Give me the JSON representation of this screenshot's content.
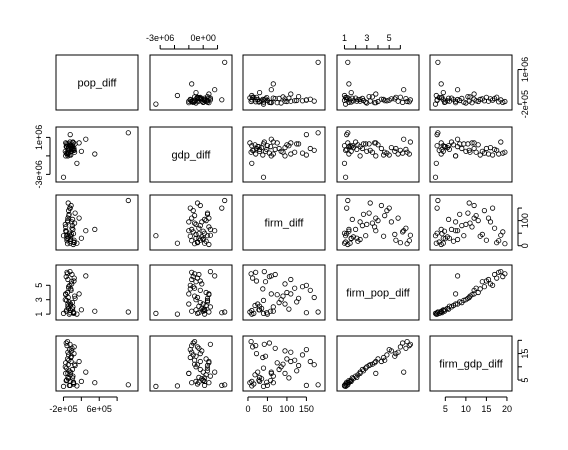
{
  "chart_data": {
    "type": "scatter",
    "variables": [
      "pop_diff",
      "gdp_diff",
      "firm_diff",
      "firm_pop_diff",
      "firm_gdp_diff"
    ],
    "axis_ticks": {
      "pop_diff": [
        "-2e+05",
        "6e+05"
      ],
      "gdp_diff": [
        "-3e+06",
        "0e+00",
        "1e+06",
        "-2e+05",
        "1e+06"
      ],
      "firm_diff": [
        "0",
        "50",
        "100",
        "150",
        "0",
        "100"
      ],
      "firm_pop_diff": [
        "1",
        "3",
        "5",
        "1",
        "3",
        "5"
      ],
      "firm_gdp_diff": [
        "5",
        "10",
        "15",
        "20",
        "5",
        "15"
      ]
    },
    "ranges": {
      "pop_diff": [
        -300000,
        1400000
      ],
      "gdp_diff": [
        -3500000,
        1800000
      ],
      "firm_diff": [
        -5,
        190
      ],
      "firm_pop_diff": [
        0.6,
        7.4
      ],
      "firm_gdp_diff": [
        2.0,
        20.5
      ]
    },
    "observations": [
      {
        "pop_diff": -150000,
        "gdp_diff": -1000000,
        "firm_diff": 60,
        "firm_pop_diff": 3.8,
        "firm_gdp_diff": 7.5
      },
      {
        "pop_diff": -120000,
        "gdp_diff": -800000,
        "firm_diff": 20,
        "firm_pop_diff": 6.8,
        "firm_gdp_diff": 18.0
      },
      {
        "pop_diff": -100000,
        "gdp_diff": -300000,
        "firm_diff": 30,
        "firm_pop_diff": 2.1,
        "firm_gdp_diff": 6.0
      },
      {
        "pop_diff": -80000,
        "gdp_diff": -600000,
        "firm_diff": 120,
        "firm_pop_diff": 4.6,
        "firm_gdp_diff": 12.5
      },
      {
        "pop_diff": -50000,
        "gdp_diff": 100000,
        "firm_diff": 10,
        "firm_pop_diff": 1.5,
        "firm_gdp_diff": 4.5
      },
      {
        "pop_diff": -20000,
        "gdp_diff": -500000,
        "firm_diff": 45,
        "firm_pop_diff": 5.5,
        "firm_gdp_diff": 14.0
      },
      {
        "pop_diff": 0,
        "gdp_diff": -200000,
        "firm_diff": 80,
        "firm_pop_diff": 2.6,
        "firm_gdp_diff": 9.0
      },
      {
        "pop_diff": 30000,
        "gdp_diff": -400000,
        "firm_diff": 15,
        "firm_pop_diff": 1.1,
        "firm_gdp_diff": 3.5
      },
      {
        "pop_diff": 60000,
        "gdp_diff": 300000,
        "firm_diff": 130,
        "firm_pop_diff": 3.2,
        "firm_gdp_diff": 10.5
      },
      {
        "pop_diff": -140000,
        "gdp_diff": -700000,
        "firm_diff": 55,
        "firm_pop_diff": 6.2,
        "firm_gdp_diff": 19.0
      },
      {
        "pop_diff": -110000,
        "gdp_diff": 200000,
        "firm_diff": 100,
        "firm_pop_diff": 4.0,
        "firm_gdp_diff": 13.0
      },
      {
        "pop_diff": -90000,
        "gdp_diff": -100000,
        "firm_diff": 35,
        "firm_pop_diff": 1.8,
        "firm_gdp_diff": 5.5
      },
      {
        "pop_diff": -60000,
        "gdp_diff": -900000,
        "firm_diff": 150,
        "firm_pop_diff": 5.0,
        "firm_gdp_diff": 16.5
      },
      {
        "pop_diff": -40000,
        "gdp_diff": 0,
        "firm_diff": 25,
        "firm_pop_diff": 2.4,
        "firm_gdp_diff": 8.0
      },
      {
        "pop_diff": -10000,
        "gdp_diff": -300000,
        "firm_diff": 70,
        "firm_pop_diff": 6.5,
        "firm_gdp_diff": 17.0
      },
      {
        "pop_diff": 20000,
        "gdp_diff": 400000,
        "firm_diff": 5,
        "firm_pop_diff": 1.3,
        "firm_gdp_diff": 4.0
      },
      {
        "pop_diff": 50000,
        "gdp_diff": -600000,
        "firm_diff": 90,
        "firm_pop_diff": 3.5,
        "firm_gdp_diff": 11.0
      },
      {
        "pop_diff": -130000,
        "gdp_diff": 300000,
        "firm_diff": 40,
        "firm_pop_diff": 2.9,
        "firm_gdp_diff": 9.5
      },
      {
        "pop_diff": -100000,
        "gdp_diff": -800000,
        "firm_diff": 110,
        "firm_pop_diff": 5.8,
        "firm_gdp_diff": 15.5
      },
      {
        "pop_diff": -70000,
        "gdp_diff": 100000,
        "firm_diff": 50,
        "firm_pop_diff": 1.0,
        "firm_gdp_diff": 3.0
      },
      {
        "pop_diff": -30000,
        "gdp_diff": -200000,
        "firm_diff": 160,
        "firm_pop_diff": 4.3,
        "firm_gdp_diff": 12.0
      },
      {
        "pop_diff": 10000,
        "gdp_diff": 500000,
        "firm_diff": 65,
        "firm_pop_diff": 2.0,
        "firm_gdp_diff": 6.5
      },
      {
        "pop_diff": 40000,
        "gdp_diff": -400000,
        "firm_diff": 12,
        "firm_pop_diff": 6.0,
        "firm_gdp_diff": 17.5
      },
      {
        "pop_diff": -160000,
        "gdp_diff": -500000,
        "firm_diff": 85,
        "firm_pop_diff": 3.0,
        "firm_gdp_diff": 10.0
      },
      {
        "pop_diff": -125000,
        "gdp_diff": 0,
        "firm_diff": 28,
        "firm_pop_diff": 1.6,
        "firm_gdp_diff": 5.0
      },
      {
        "pop_diff": -85000,
        "gdp_diff": -700000,
        "firm_diff": 140,
        "firm_pop_diff": 4.8,
        "firm_gdp_diff": 14.5
      },
      {
        "pop_diff": -45000,
        "gdp_diff": 200000,
        "firm_diff": 18,
        "firm_pop_diff": 2.2,
        "firm_gdp_diff": 7.0
      },
      {
        "pop_diff": -15000,
        "gdp_diff": -100000,
        "firm_diff": 95,
        "firm_pop_diff": 5.2,
        "firm_gdp_diff": 16.0
      },
      {
        "pop_diff": 25000,
        "gdp_diff": -300000,
        "firm_diff": 48,
        "firm_pop_diff": 1.2,
        "firm_gdp_diff": 4.2
      },
      {
        "pop_diff": -150000,
        "gdp_diff": 400000,
        "firm_diff": 75,
        "firm_pop_diff": 3.7,
        "firm_gdp_diff": 11.5
      },
      {
        "pop_diff": -110000,
        "gdp_diff": -600000,
        "firm_diff": 8,
        "firm_pop_diff": 6.6,
        "firm_gdp_diff": 19.5
      },
      {
        "pop_diff": -75000,
        "gdp_diff": 300000,
        "firm_diff": 125,
        "firm_pop_diff": 2.7,
        "firm_gdp_diff": 8.5
      },
      {
        "pop_diff": -35000,
        "gdp_diff": -900000,
        "firm_diff": 38,
        "firm_pop_diff": 4.5,
        "firm_gdp_diff": 13.5
      },
      {
        "pop_diff": 5000,
        "gdp_diff": 100000,
        "firm_diff": 105,
        "firm_pop_diff": 1.7,
        "firm_gdp_diff": 5.8
      },
      {
        "pop_diff": 35000,
        "gdp_diff": -200000,
        "firm_diff": 22,
        "firm_pop_diff": 5.6,
        "firm_gdp_diff": 15.0
      },
      {
        "pop_diff": -140000,
        "gdp_diff": 0,
        "firm_diff": 58,
        "firm_pop_diff": 1.4,
        "firm_gdp_diff": 4.8
      },
      {
        "pop_diff": -95000,
        "gdp_diff": -400000,
        "firm_diff": 170,
        "firm_pop_diff": 3.3,
        "firm_gdp_diff": 10.8
      },
      {
        "pop_diff": -55000,
        "gdp_diff": 500000,
        "firm_diff": 42,
        "firm_pop_diff": 6.9,
        "firm_gdp_diff": 18.5
      },
      {
        "pop_diff": 300000,
        "gdp_diff": 800000,
        "firm_diff": 60,
        "firm_pop_diff": 6.3,
        "firm_gdp_diff": 8.0
      },
      {
        "pop_diff": 200000,
        "gdp_diff": -500000,
        "firm_diff": 30,
        "firm_pop_diff": 1.6,
        "firm_gdp_diff": 4.5
      },
      {
        "pop_diff": 150000,
        "gdp_diff": 400000,
        "firm_diff": 110,
        "firm_pop_diff": 3.8,
        "firm_gdp_diff": 12.0
      },
      {
        "pop_diff": 100000,
        "gdp_diff": -1800000,
        "firm_diff": 10,
        "firm_pop_diff": 1.0,
        "firm_gdp_diff": 2.8
      },
      {
        "pop_diff": 1250000,
        "gdp_diff": 1500000,
        "firm_diff": 180,
        "firm_pop_diff": 1.3,
        "firm_gdp_diff": 3.2
      },
      {
        "pop_diff": -200000,
        "gdp_diff": -3300000,
        "firm_diff": 40,
        "firm_pop_diff": 1.1,
        "firm_gdp_diff": 2.6
      },
      {
        "pop_diff": -50000,
        "gdp_diff": 1300000,
        "firm_diff": 150,
        "firm_pop_diff": 1.2,
        "firm_gdp_diff": 3.0
      },
      {
        "pop_diff": 500000,
        "gdp_diff": -800000,
        "firm_diff": 65,
        "firm_pop_diff": 1.4,
        "firm_gdp_diff": 4.0
      },
      {
        "pop_diff": -100000,
        "gdp_diff": -1000000,
        "firm_diff": 95,
        "firm_pop_diff": 2.4,
        "firm_gdp_diff": 7.5
      }
    ]
  }
}
